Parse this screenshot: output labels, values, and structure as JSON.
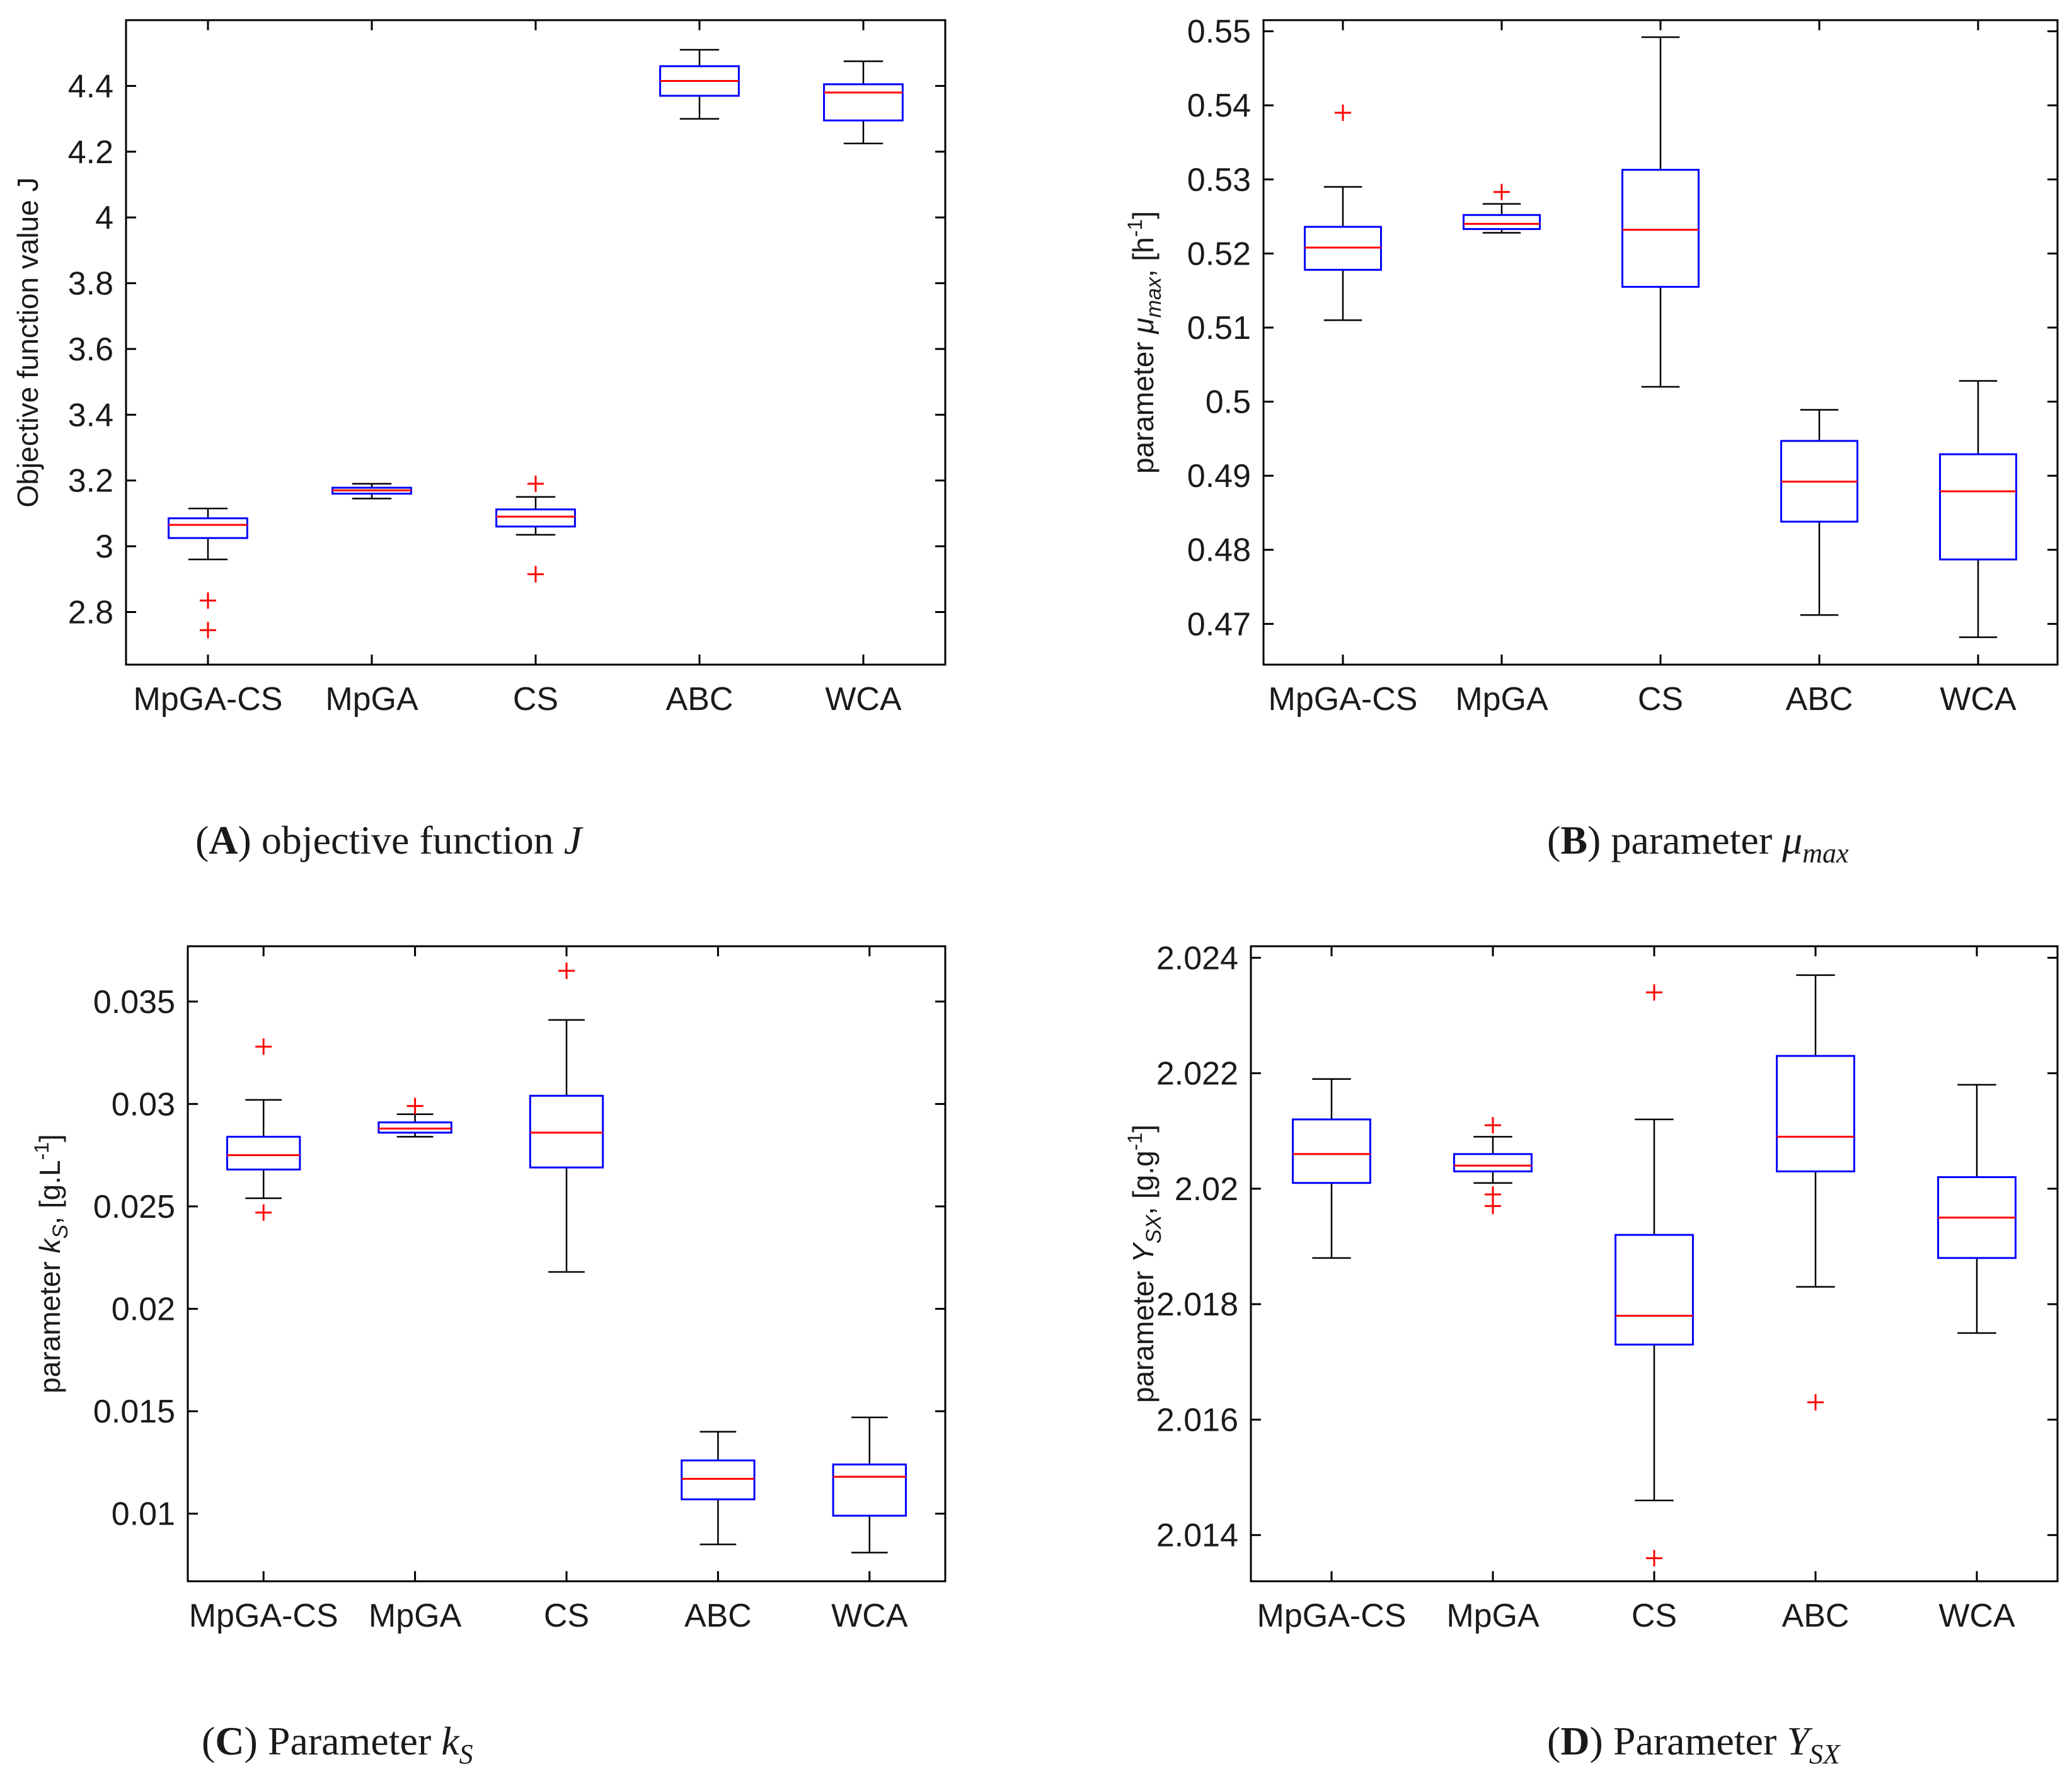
{
  "chart_data": [
    {
      "type": "box",
      "panel": "A",
      "categories": [
        "MpGA-CS",
        "MpGA",
        "CS",
        "ABC",
        "WCA"
      ],
      "ylabel": "Objective function value J",
      "ylim": [
        2.64,
        4.6
      ],
      "yticks": [
        2.8,
        3,
        3.2,
        3.4,
        3.6,
        3.8,
        4,
        4.2,
        4.4
      ],
      "ytick_labels": [
        "2.8",
        "3",
        "3.2",
        "3.4",
        "3.6",
        "3.8",
        "4",
        "4.2",
        "4.4"
      ],
      "boxes": [
        {
          "whisker_low": 2.96,
          "q1": 3.025,
          "median": 3.065,
          "q3": 3.085,
          "whisker_high": 3.115,
          "outliers": [
            2.835,
            2.745
          ]
        },
        {
          "whisker_low": 3.145,
          "q1": 3.16,
          "median": 3.17,
          "q3": 3.178,
          "whisker_high": 3.19,
          "outliers": []
        },
        {
          "whisker_low": 3.035,
          "q1": 3.06,
          "median": 3.09,
          "q3": 3.112,
          "whisker_high": 3.15,
          "outliers": [
            3.19,
            2.915
          ]
        },
        {
          "whisker_low": 4.3,
          "q1": 4.37,
          "median": 4.415,
          "q3": 4.46,
          "whisker_high": 4.51,
          "outliers": []
        },
        {
          "whisker_low": 4.225,
          "q1": 4.295,
          "median": 4.38,
          "q3": 4.405,
          "whisker_high": 4.475,
          "outliers": []
        }
      ],
      "caption": {
        "letter": "A",
        "text": "objective function",
        "symbol": "J"
      }
    },
    {
      "type": "box",
      "panel": "B",
      "categories": [
        "MpGA-CS",
        "MpGA",
        "CS",
        "ABC",
        "WCA"
      ],
      "ylabel": {
        "prefix": "parameter ",
        "symbol": "μ",
        "subscript": "max",
        "unit_open": ", [h",
        "unit_sup": "-1",
        "unit_close": "]"
      },
      "ylim": [
        0.4645,
        0.5515
      ],
      "yticks": [
        0.47,
        0.48,
        0.49,
        0.5,
        0.51,
        0.52,
        0.53,
        0.54,
        0.55
      ],
      "ytick_labels": [
        "0.47",
        "0.48",
        "0.49",
        "0.5",
        "0.51",
        "0.52",
        "0.53",
        "0.54",
        "0.55"
      ],
      "boxes": [
        {
          "whisker_low": 0.511,
          "q1": 0.5178,
          "median": 0.5208,
          "q3": 0.5236,
          "whisker_high": 0.529,
          "outliers": [
            0.539
          ]
        },
        {
          "whisker_low": 0.5228,
          "q1": 0.5233,
          "median": 0.524,
          "q3": 0.5252,
          "whisker_high": 0.5267,
          "outliers": [
            0.5283
          ]
        },
        {
          "whisker_low": 0.502,
          "q1": 0.5155,
          "median": 0.5232,
          "q3": 0.5313,
          "whisker_high": 0.5492,
          "outliers": []
        },
        {
          "whisker_low": 0.4712,
          "q1": 0.4838,
          "median": 0.4892,
          "q3": 0.4947,
          "whisker_high": 0.4989,
          "outliers": []
        },
        {
          "whisker_low": 0.4682,
          "q1": 0.4787,
          "median": 0.4879,
          "q3": 0.4929,
          "whisker_high": 0.5028,
          "outliers": []
        }
      ],
      "caption": {
        "letter": "B",
        "text": "parameter",
        "symbol": "μ",
        "subscript": "max"
      }
    },
    {
      "type": "box",
      "panel": "C",
      "categories": [
        "MpGA-CS",
        "MpGA",
        "CS",
        "ABC",
        "WCA"
      ],
      "ylabel": {
        "prefix": "parameter ",
        "symbol": "k",
        "subscript": "S",
        "unit_open": ", [g.L",
        "unit_sup": "-1",
        "unit_close": "]"
      },
      "ylim": [
        0.0067,
        0.0377
      ],
      "yticks": [
        0.01,
        0.015,
        0.02,
        0.025,
        0.03,
        0.035
      ],
      "ytick_labels": [
        "0.01",
        "0.015",
        "0.02",
        "0.025",
        "0.03",
        "0.035"
      ],
      "boxes": [
        {
          "whisker_low": 0.0254,
          "q1": 0.0268,
          "median": 0.0275,
          "q3": 0.0284,
          "whisker_high": 0.0302,
          "outliers": [
            0.0328,
            0.0247
          ]
        },
        {
          "whisker_low": 0.0284,
          "q1": 0.0286,
          "median": 0.0288,
          "q3": 0.0291,
          "whisker_high": 0.0295,
          "outliers": [
            0.0299
          ]
        },
        {
          "whisker_low": 0.0218,
          "q1": 0.0269,
          "median": 0.0286,
          "q3": 0.0304,
          "whisker_high": 0.0341,
          "outliers": [
            0.0365
          ]
        },
        {
          "whisker_low": 0.0085,
          "q1": 0.0107,
          "median": 0.0117,
          "q3": 0.0126,
          "whisker_high": 0.014,
          "outliers": []
        },
        {
          "whisker_low": 0.0081,
          "q1": 0.0099,
          "median": 0.0118,
          "q3": 0.0124,
          "whisker_high": 0.0147,
          "outliers": []
        }
      ],
      "caption": {
        "letter": "C",
        "text": "Parameter",
        "symbol": "k",
        "subscript": "S"
      }
    },
    {
      "type": "box",
      "panel": "D",
      "categories": [
        "MpGA-CS",
        "MpGA",
        "CS",
        "ABC",
        "WCA"
      ],
      "ylabel": {
        "prefix": "parameter ",
        "symbol": "Y",
        "subscript": "SX",
        "unit_open": ", [g.g",
        "unit_sup": "-1",
        "unit_close": "]"
      },
      "ylim": [
        2.0132,
        2.0242
      ],
      "yticks": [
        2.014,
        2.016,
        2.018,
        2.02,
        2.022,
        2.024
      ],
      "ytick_labels": [
        "2.014",
        "2.016",
        "2.018",
        "2.02",
        "2.022",
        "2.024"
      ],
      "boxes": [
        {
          "whisker_low": 2.0188,
          "q1": 2.0201,
          "median": 2.0206,
          "q3": 2.0212,
          "whisker_high": 2.0219,
          "outliers": []
        },
        {
          "whisker_low": 2.0201,
          "q1": 2.0203,
          "median": 2.0204,
          "q3": 2.0206,
          "whisker_high": 2.0209,
          "outliers": [
            2.0211,
            2.0199,
            2.0197
          ]
        },
        {
          "whisker_low": 2.0146,
          "q1": 2.0173,
          "median": 2.0178,
          "q3": 2.0192,
          "whisker_high": 2.0212,
          "outliers": [
            2.0234,
            2.0136
          ]
        },
        {
          "whisker_low": 2.0183,
          "q1": 2.0203,
          "median": 2.0209,
          "q3": 2.0223,
          "whisker_high": 2.0237,
          "outliers": [
            2.0163
          ]
        },
        {
          "whisker_low": 2.0175,
          "q1": 2.0188,
          "median": 2.0195,
          "q3": 2.0202,
          "whisker_high": 2.0218,
          "outliers": []
        }
      ],
      "caption": {
        "letter": "D",
        "text": "Parameter",
        "symbol": "Y",
        "subscript": "SX"
      }
    }
  ],
  "colors": {
    "box": "#0000ff",
    "median": "#ff0000",
    "whisker": "#000000",
    "outlier": "#ff0000",
    "axes": "#000000"
  }
}
